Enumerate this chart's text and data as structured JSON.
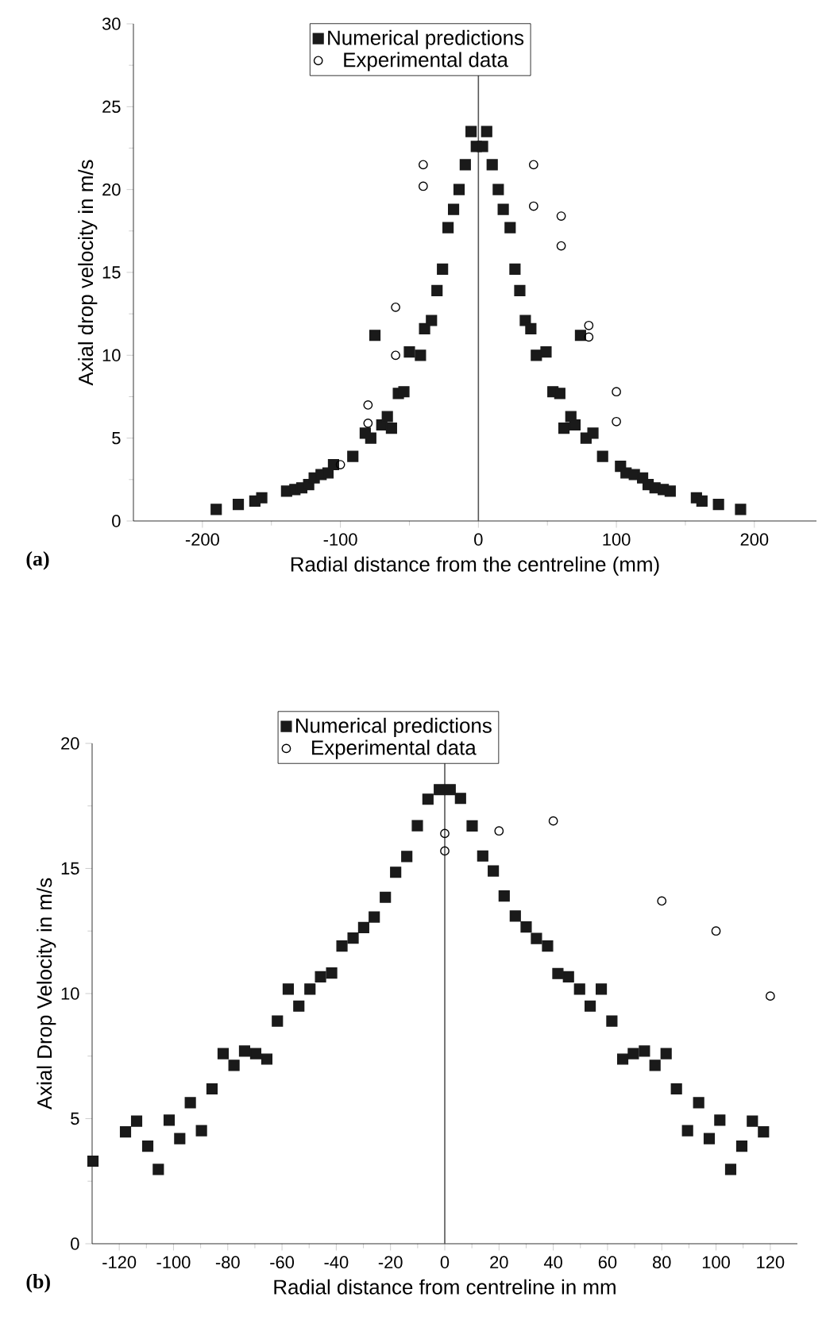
{
  "chart_data": [
    {
      "type": "scatter",
      "xlabel": "Radial distance from the centreline (mm)",
      "ylabel": "Axial drop velocity in m/s",
      "annotations": [
        "(a)"
      ],
      "xlim": [
        -250,
        245
      ],
      "ylim": [
        0,
        30
      ],
      "xticks": [
        -200,
        -100,
        0,
        100,
        200
      ],
      "yticks": [
        0,
        5,
        10,
        15,
        20,
        25,
        30
      ],
      "grid": false,
      "legend": "top",
      "ref_lines": [
        {
          "axis": "x",
          "value": 0,
          "color": "#555555"
        }
      ],
      "series": [
        {
          "name": "Numerical predictions",
          "color": "#1a1a1a",
          "marker": "square",
          "x": [
            -190,
            -174,
            -162,
            -157,
            -139,
            -133,
            -128,
            -123,
            -119,
            -114,
            -109,
            -105,
            -91,
            -82,
            -78,
            -75,
            -70,
            -66,
            -63,
            -58,
            -54,
            -50,
            -42,
            -39,
            -34,
            -30,
            -26,
            -22,
            -18,
            -14,
            -9.5,
            -5.3,
            -1.5,
            3,
            6,
            10,
            14.4,
            18,
            23,
            26.5,
            30,
            34,
            38,
            42,
            49,
            54,
            59,
            62,
            67,
            70,
            74,
            78,
            83,
            90,
            103,
            107,
            113,
            119,
            123,
            128,
            134,
            139,
            158,
            162,
            174,
            190
          ],
          "values": [
            0.7,
            1.0,
            1.2,
            1.4,
            1.8,
            1.9,
            2.0,
            2.2,
            2.6,
            2.8,
            2.9,
            3.4,
            3.9,
            5.3,
            5.0,
            11.2,
            5.8,
            6.3,
            5.6,
            7.7,
            7.8,
            10.2,
            10.0,
            11.6,
            12.1,
            13.9,
            15.2,
            17.7,
            18.8,
            20.0,
            21.5,
            23.5,
            22.6,
            22.6,
            23.5,
            21.5,
            20.0,
            18.8,
            17.7,
            15.2,
            13.9,
            12.1,
            11.6,
            10.0,
            10.2,
            7.8,
            7.7,
            5.6,
            6.3,
            5.8,
            11.2,
            5.0,
            5.3,
            3.9,
            3.3,
            2.9,
            2.8,
            2.6,
            2.2,
            2.0,
            1.9,
            1.8,
            1.4,
            1.2,
            1.0,
            0.7
          ]
        },
        {
          "name": "Experimental data",
          "color": "#000000",
          "marker": "circle",
          "x": [
            -100,
            -80,
            -80,
            -60,
            -60,
            -40,
            -40,
            40,
            40,
            60,
            60,
            80,
            80,
            100,
            100
          ],
          "values": [
            3.4,
            7.0,
            5.9,
            12.9,
            10.0,
            21.5,
            20.2,
            21.5,
            19.0,
            18.4,
            16.6,
            11.8,
            11.1,
            7.8,
            6.0
          ]
        }
      ]
    },
    {
      "type": "scatter",
      "xlabel": "Radial distance from centreline in mm",
      "ylabel": "Axial Drop Velocity in m/s",
      "annotations": [
        "(b)"
      ],
      "xlim": [
        -130,
        130
      ],
      "ylim": [
        0,
        20
      ],
      "xticks": [
        -120,
        -100,
        -80,
        -60,
        -40,
        -20,
        0,
        20,
        40,
        60,
        80,
        100,
        120
      ],
      "yticks": [
        0,
        5,
        10,
        15,
        20
      ],
      "grid": false,
      "legend": "top",
      "ref_lines": [
        {
          "axis": "x",
          "value": 0,
          "color": "#555555"
        }
      ],
      "series": [
        {
          "name": "Numerical predictions",
          "color": "#1a1a1a",
          "marker": "square",
          "x": [
            -129.7,
            -117.7,
            -113.6,
            -109.5,
            -105.6,
            -101.6,
            -97.7,
            -93.8,
            -89.7,
            -85.8,
            -81.7,
            -77.7,
            -73.8,
            -69.7,
            -65.6,
            -61.7,
            -57.7,
            -53.8,
            -49.7,
            -45.8,
            -41.7,
            -37.9,
            -33.8,
            -29.9,
            -26,
            -21.9,
            -18.1,
            -14,
            -10.1,
            -6.2,
            -2,
            2,
            5.8,
            10.1,
            14,
            17.9,
            21.9,
            26,
            30,
            33.8,
            37.9,
            41.7,
            45.6,
            49.7,
            53.6,
            57.7,
            61.6,
            65.6,
            69.5,
            73.6,
            77.5,
            81.6,
            85.4,
            89.5,
            93.6,
            97.5,
            101.4,
            105.4,
            109.5,
            113.4,
            117.5
          ],
          "values": [
            3.3,
            4.47,
            4.9,
            3.9,
            2.97,
            4.94,
            4.2,
            5.64,
            4.52,
            6.19,
            7.6,
            7.13,
            7.7,
            7.6,
            7.38,
            8.9,
            10.18,
            9.5,
            10.18,
            10.67,
            10.82,
            11.9,
            12.22,
            12.64,
            13.06,
            13.85,
            14.85,
            15.48,
            16.71,
            17.77,
            18.15,
            18.15,
            17.8,
            16.7,
            15.5,
            14.9,
            13.9,
            13.1,
            12.66,
            12.2,
            11.9,
            10.8,
            10.67,
            10.18,
            9.5,
            10.18,
            8.9,
            7.38,
            7.6,
            7.7,
            7.13,
            7.6,
            6.19,
            4.52,
            5.64,
            4.2,
            4.94,
            2.97,
            3.9,
            4.9,
            4.47
          ]
        },
        {
          "name": "Experimental data",
          "color": "#000000",
          "marker": "circle",
          "x": [
            0,
            0,
            20,
            40,
            80,
            100,
            120
          ],
          "values": [
            16.4,
            15.7,
            16.5,
            16.9,
            13.7,
            12.5,
            9.9
          ]
        }
      ]
    }
  ]
}
